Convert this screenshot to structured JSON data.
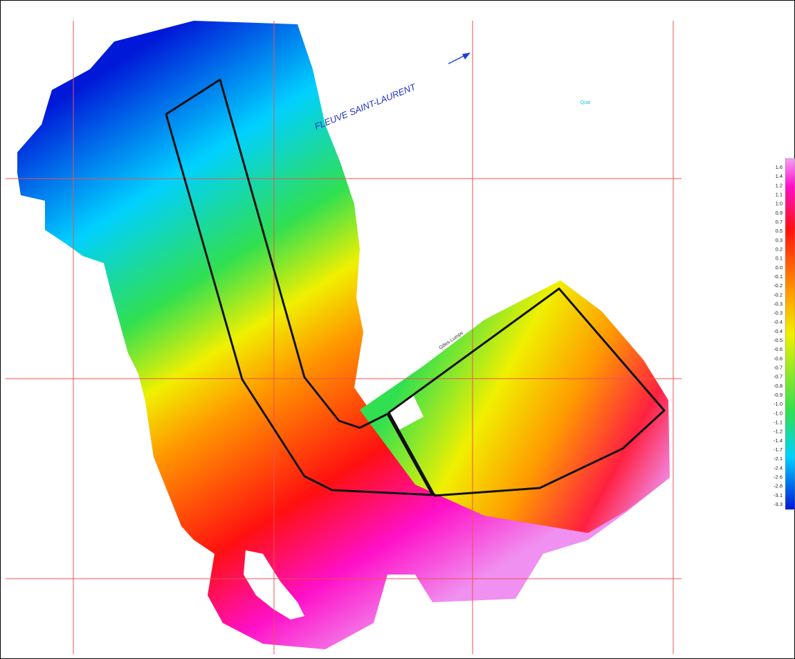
{
  "map": {
    "river_label": "FLEUVE SAINT-LAURENT",
    "quay_label": "Quai",
    "site_label": "Gilles-Lumps"
  },
  "legend": {
    "labels": [
      "1.6",
      "1.4",
      "1.2",
      "1.1",
      "1.0",
      "0.9",
      "0.7",
      "0.5",
      "0.3",
      "0.2",
      "0.1",
      "0.0",
      "-0.1",
      "-0.2",
      "-0.2",
      "-0.3",
      "-0.3",
      "-0.4",
      "-0.4",
      "-0.5",
      "-0.6",
      "-0.6",
      "-0.7",
      "-0.7",
      "-0.8",
      "-0.9",
      "-1.0",
      "-1.0",
      "-1.1",
      "-1.2",
      "-1.4",
      "-1.7",
      "-2.1",
      "-2.4",
      "-2.6",
      "-2.8",
      "-3.1",
      "-3.3"
    ]
  }
}
